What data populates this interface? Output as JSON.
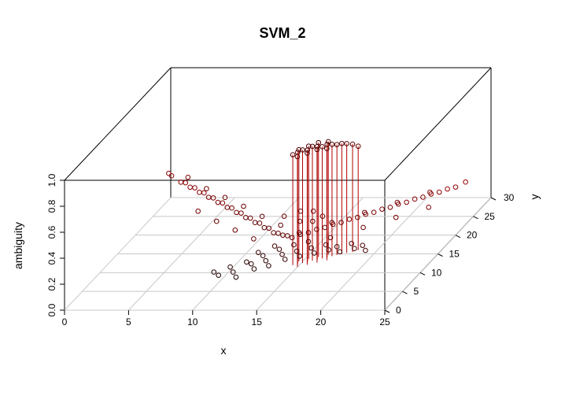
{
  "chart_data": {
    "type": "scatter",
    "title": "SVM_2",
    "xlabel": "x",
    "ylabel": "y",
    "zlabel": "ambiguity",
    "xlim": [
      0,
      25
    ],
    "ylim": [
      0,
      30
    ],
    "zlim": [
      0,
      1
    ],
    "x_ticks": [
      "0",
      "5",
      "10",
      "15",
      "20",
      "25"
    ],
    "y_ticks": [
      "0",
      "5",
      "10",
      "15",
      "20",
      "25",
      "30"
    ],
    "z_ticks": [
      "0.0",
      "0.2",
      "0.4",
      "0.6",
      "0.8",
      "1.0"
    ],
    "grid": true,
    "vertical_drop_lines": true,
    "point_color_low": "#000000",
    "point_color_high": "#cc0000",
    "series": [
      {
        "values": [
          [
            1.5,
            24,
            0.36
          ],
          [
            2,
            23,
            0.37
          ],
          [
            3,
            22,
            0.35
          ],
          [
            3.5,
            21.5,
            0.36
          ],
          [
            4,
            21,
            0.34
          ],
          [
            4.5,
            20.5,
            0.35
          ],
          [
            5,
            20,
            0.33
          ],
          [
            5.5,
            19.5,
            0.34
          ],
          [
            6,
            19,
            0.32
          ],
          [
            6.5,
            18.5,
            0.33
          ],
          [
            7,
            18,
            0.31
          ],
          [
            7.5,
            17.5,
            0.32
          ],
          [
            8,
            17,
            0.3
          ],
          [
            8.5,
            16.5,
            0.31
          ],
          [
            9,
            16,
            0.29
          ],
          [
            9.5,
            15.5,
            0.3
          ],
          [
            10,
            15,
            0.28
          ],
          [
            10.5,
            14.5,
            0.29
          ],
          [
            11,
            14,
            0.27
          ],
          [
            11.5,
            13.5,
            0.28
          ],
          [
            12,
            13,
            0.26
          ],
          [
            12.5,
            12.5,
            0.27
          ],
          [
            13,
            12,
            0.25
          ],
          [
            13.5,
            11.5,
            0.26
          ],
          [
            14,
            11,
            0.26
          ],
          [
            14.5,
            10.5,
            0.27
          ],
          [
            15,
            10,
            0.27
          ],
          [
            15.5,
            10.5,
            0.28
          ],
          [
            16,
            11,
            0.28
          ],
          [
            16.5,
            11.5,
            0.29
          ],
          [
            17,
            12,
            0.29
          ],
          [
            17.5,
            12.5,
            0.3
          ],
          [
            18,
            13,
            0.3
          ],
          [
            18.5,
            13.5,
            0.31
          ],
          [
            19,
            14,
            0.31
          ],
          [
            19.5,
            14.5,
            0.32
          ],
          [
            20,
            15,
            0.32
          ],
          [
            20.5,
            15.5,
            0.33
          ],
          [
            21,
            16,
            0.33
          ],
          [
            21.5,
            16.5,
            0.34
          ],
          [
            22,
            17,
            0.34
          ],
          [
            22.5,
            17.5,
            0.35
          ],
          [
            23,
            18,
            0.35
          ],
          [
            23.5,
            18.5,
            0.36
          ],
          [
            24,
            19,
            0.36
          ],
          [
            24.5,
            19.5,
            0.37
          ],
          [
            25,
            20,
            0.37
          ],
          [
            25.5,
            21,
            0.38
          ],
          [
            3,
            24,
            0.33
          ],
          [
            5,
            22,
            0.3
          ],
          [
            7,
            20,
            0.29
          ],
          [
            9,
            18,
            0.28
          ],
          [
            11,
            16,
            0.26
          ],
          [
            13,
            14,
            0.25
          ],
          [
            15,
            12,
            0.25
          ],
          [
            17,
            14,
            0.27
          ],
          [
            19,
            16,
            0.29
          ],
          [
            21,
            18,
            0.31
          ],
          [
            23,
            20,
            0.33
          ],
          [
            6,
            16,
            0.3
          ],
          [
            8,
            14,
            0.28
          ],
          [
            10,
            12,
            0.27
          ],
          [
            12,
            10,
            0.26
          ],
          [
            18,
            10,
            0.27
          ],
          [
            20,
            12,
            0.29
          ],
          [
            22,
            14,
            0.31
          ],
          [
            24,
            16,
            0.33
          ],
          [
            13,
            15,
            0.29
          ],
          [
            14,
            16,
            0.3
          ],
          [
            15,
            16,
            0.3
          ],
          [
            16,
            15,
            0.29
          ],
          [
            14.5,
            14,
            0.28
          ],
          [
            15.5,
            14,
            0.28
          ]
        ]
      },
      {
        "values": [
          [
            10,
            6,
            0.12
          ],
          [
            10.5,
            5.5,
            0.11
          ],
          [
            11,
            7,
            0.13
          ],
          [
            11.5,
            6,
            0.12
          ],
          [
            12,
            8,
            0.14
          ],
          [
            12,
            5,
            0.11
          ],
          [
            12.5,
            7.5,
            0.14
          ],
          [
            13,
            6.5,
            0.13
          ],
          [
            13,
            9,
            0.16
          ],
          [
            13.5,
            8,
            0.15
          ],
          [
            14,
            7,
            0.14
          ],
          [
            14,
            10,
            0.18
          ],
          [
            14.5,
            9,
            0.17
          ],
          [
            15,
            8,
            0.16
          ],
          [
            15.5,
            9.5,
            0.18
          ],
          [
            16,
            8.5,
            0.17
          ],
          [
            16.5,
            10,
            0.19
          ],
          [
            17,
            9,
            0.18
          ],
          [
            17.5,
            10.5,
            0.2
          ],
          [
            18,
            9.5,
            0.19
          ],
          [
            18.5,
            10,
            0.2
          ],
          [
            19,
            9,
            0.19
          ],
          [
            19.5,
            10.5,
            0.21
          ],
          [
            20,
            9.5,
            0.2
          ],
          [
            20.5,
            10,
            0.21
          ],
          [
            21,
            9,
            0.2
          ],
          [
            15,
            10.5,
            0.2
          ],
          [
            16,
            11,
            0.21
          ],
          [
            13.5,
            10.5,
            0.19
          ],
          [
            12.5,
            9.5,
            0.17
          ]
        ]
      },
      {
        "values": [
          [
            14.5,
            12,
            0.85
          ],
          [
            14.8,
            12.3,
            0.86
          ],
          [
            15.1,
            12.6,
            0.87
          ],
          [
            15.4,
            12.9,
            0.86
          ],
          [
            15.7,
            13.2,
            0.88
          ],
          [
            16,
            13.5,
            0.87
          ],
          [
            16.3,
            13.8,
            0.86
          ],
          [
            16.6,
            14.1,
            0.87
          ],
          [
            16.9,
            14.4,
            0.86
          ],
          [
            17.2,
            14.7,
            0.85
          ],
          [
            14.7,
            13,
            0.86
          ],
          [
            15.3,
            13.6,
            0.87
          ],
          [
            15.9,
            14.2,
            0.88
          ],
          [
            16.5,
            14.8,
            0.87
          ],
          [
            17.5,
            15,
            0.85
          ],
          [
            17.8,
            15.3,
            0.84
          ],
          [
            15,
            11.5,
            0.85
          ],
          [
            15.6,
            12.1,
            0.86
          ],
          [
            16.2,
            12.7,
            0.87
          ],
          [
            16.8,
            13.3,
            0.86
          ],
          [
            18.5,
            16,
            0.8
          ],
          [
            18.2,
            15.5,
            0.83
          ]
        ]
      }
    ]
  }
}
